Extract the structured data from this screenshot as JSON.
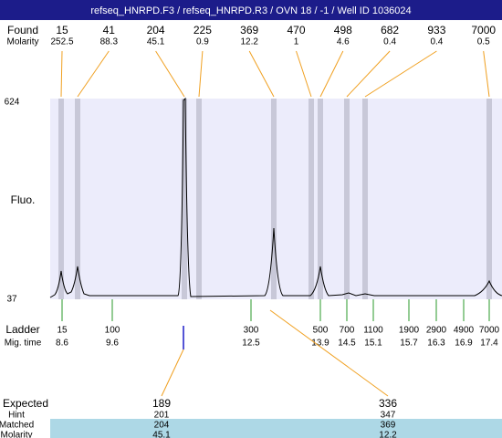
{
  "title": "refseq_HNRPD.F3 / refseq_HNRPD.R3 / OVN 18 / -1 / Well ID 1036024",
  "found": {
    "label": "Found",
    "sizes": [
      15,
      41,
      204,
      225,
      369,
      470,
      498,
      682,
      933,
      7000
    ],
    "molarity_label": "Molarity",
    "molarity": [
      252.5,
      88.3,
      45.1,
      0.9,
      12.2,
      1,
      4.6,
      0.4,
      0.4,
      0.5
    ]
  },
  "axis": {
    "label": "Fluo.",
    "max": 624,
    "min": 37
  },
  "ladder": {
    "label": "Ladder",
    "time_label": "Mig. time",
    "sizes": [
      15,
      100,
      300,
      500,
      700,
      1100,
      1900,
      2900,
      4900,
      7000
    ],
    "times": [
      8.6,
      9.6,
      12.5,
      13.9,
      14.5,
      15.1,
      15.7,
      16.3,
      16.9,
      17.4
    ]
  },
  "expected": {
    "row_labels": [
      "Expected",
      "Hint",
      "Matched",
      "Molarity"
    ],
    "columns": [
      {
        "expected": 189,
        "hint": 201,
        "matched": 204,
        "molarity": 45.1
      },
      {
        "expected": 336,
        "hint": 347,
        "matched": 369,
        "molarity": 12.2
      }
    ]
  }
}
